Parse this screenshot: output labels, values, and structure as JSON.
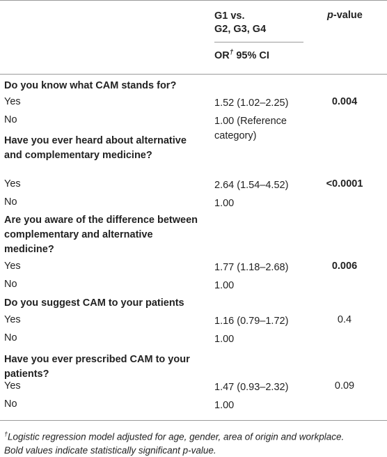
{
  "header": {
    "group_line1": "G1 vs.",
    "group_line2": "G2, G3, G4",
    "or_label": "OR",
    "or_marker": "†",
    "ci_label": "95% CI",
    "pvalue_p": "p",
    "pvalue_rest": "-value"
  },
  "questions": [
    {
      "text_lines": [
        "Do you know what CAM stands for?"
      ],
      "rows": [
        {
          "label": "Yes",
          "value_lines": [
            "1.52 (1.02–2.25)"
          ],
          "p": "0.004",
          "bold": true
        },
        {
          "label": "No",
          "value_lines": [
            "1.00 (Reference",
            "category)"
          ],
          "p": "",
          "bold": false
        }
      ]
    },
    {
      "text_lines": [
        "Have you ever heard about alternative",
        "and complementary medicine?"
      ],
      "rows": [
        {
          "label": "Yes",
          "value_lines": [
            "2.64 (1.54–4.52)"
          ],
          "p": "<0.0001",
          "bold": true
        },
        {
          "label": "No",
          "value_lines": [
            "1.00"
          ],
          "p": "",
          "bold": false
        }
      ]
    },
    {
      "text_lines": [
        "Are you aware of the difference between",
        "complementary and alternative",
        "medicine?"
      ],
      "rows": [
        {
          "label": "Yes",
          "value_lines": [
            "1.77 (1.18–2.68)"
          ],
          "p": "0.006",
          "bold": true
        },
        {
          "label": "No",
          "value_lines": [
            "1.00"
          ],
          "p": "",
          "bold": false
        }
      ]
    },
    {
      "text_lines": [
        "Do you suggest CAM to your patients"
      ],
      "rows": [
        {
          "label": "Yes",
          "value_lines": [
            "1.16 (0.79–1.72)"
          ],
          "p": "0.4",
          "bold": false
        },
        {
          "label": "No",
          "value_lines": [
            "1.00"
          ],
          "p": "",
          "bold": false
        }
      ]
    },
    {
      "text_lines": [
        "Have you ever prescribed CAM to your",
        "patients?"
      ],
      "rows": [
        {
          "label": "Yes",
          "value_lines": [
            "1.47 (0.93–2.32)"
          ],
          "p": "0.09",
          "bold": false
        },
        {
          "label": "No",
          "value_lines": [
            "1.00"
          ],
          "p": "",
          "bold": false
        }
      ]
    }
  ],
  "footnote": {
    "marker": "†",
    "line1": "Logistic regression model adjusted for age, gender, area of origin and workplace.",
    "line2": "Bold values indicate statistically significant p-value."
  }
}
